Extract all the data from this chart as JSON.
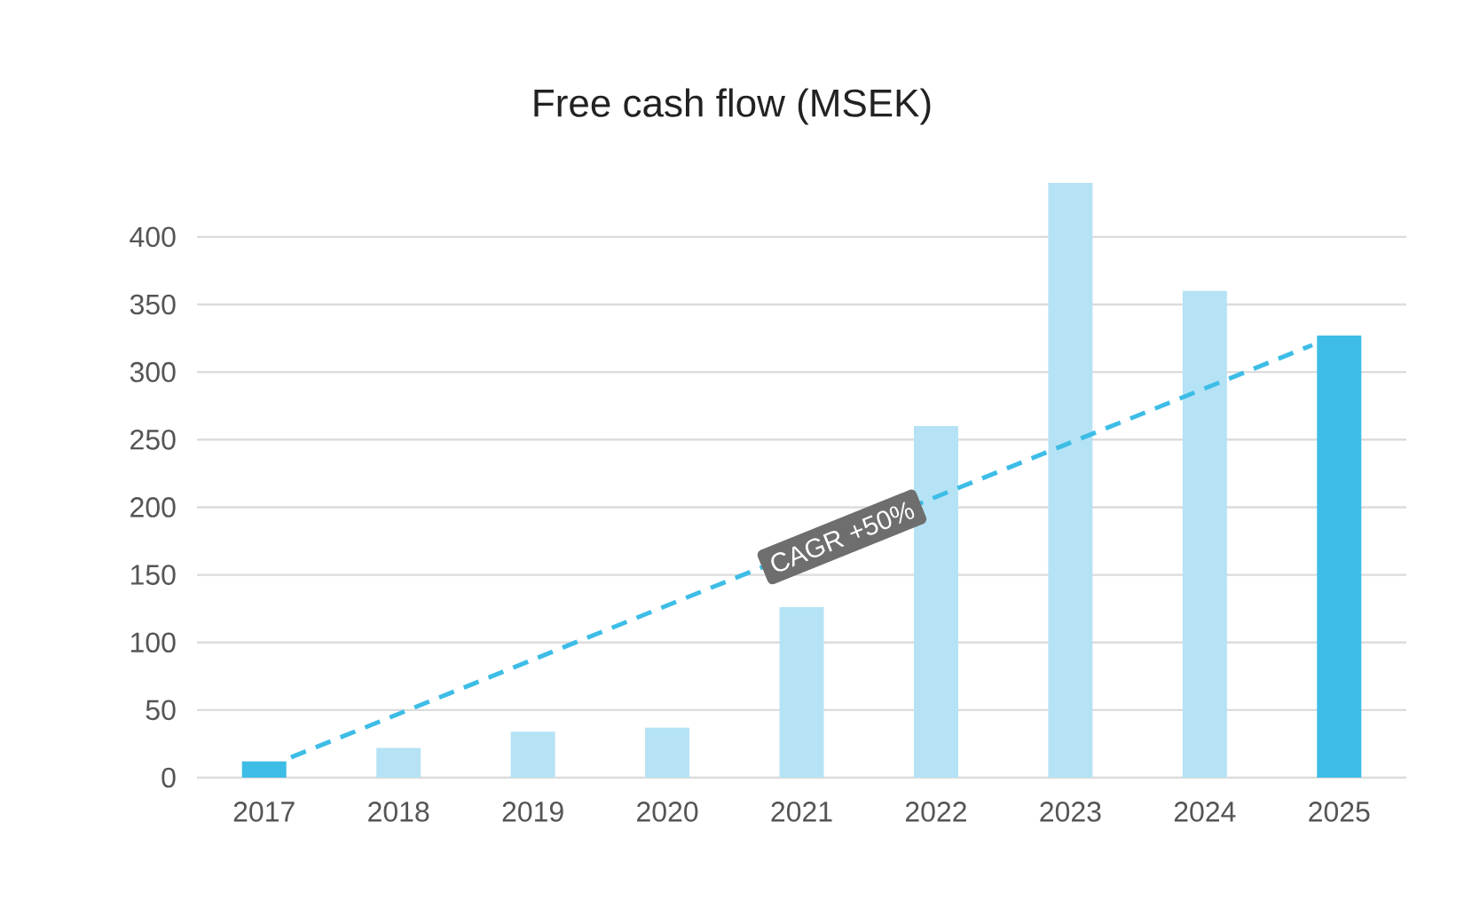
{
  "chart_data": {
    "type": "bar",
    "title": "Free cash flow  (MSEK)",
    "x": [
      2017,
      2018,
      2019,
      2020,
      2021,
      2022,
      2023,
      2024,
      2025
    ],
    "values": [
      12,
      22,
      34,
      37,
      126,
      260,
      440,
      360,
      327
    ],
    "colors": [
      "#3dbde6",
      "#b5e3f5",
      "#b5e3f5",
      "#b5e3f5",
      "#b5e3f5",
      "#b5e3f5",
      "#b5e3f5",
      "#b5e3f5",
      "#3dbde6"
    ],
    "series": [
      {
        "type": "line",
        "color": "#3dbde6",
        "line_style": "dashed",
        "x": [
          2017.2,
          2024.8
        ],
        "values": [
          15,
          320
        ]
      }
    ],
    "annotations": [
      {
        "text": "CAGR +50%",
        "x": 2021.3,
        "y": 178
      }
    ],
    "xlim": [
      2016.5,
      2025.5
    ],
    "xticks": [
      2017,
      2018,
      2019,
      2020,
      2021,
      2022,
      2023,
      2024,
      2025
    ],
    "ylim": [
      0,
      440
    ],
    "yticks": [
      0,
      50,
      100,
      150,
      200,
      250,
      300,
      350,
      400
    ],
    "grid": "y"
  }
}
